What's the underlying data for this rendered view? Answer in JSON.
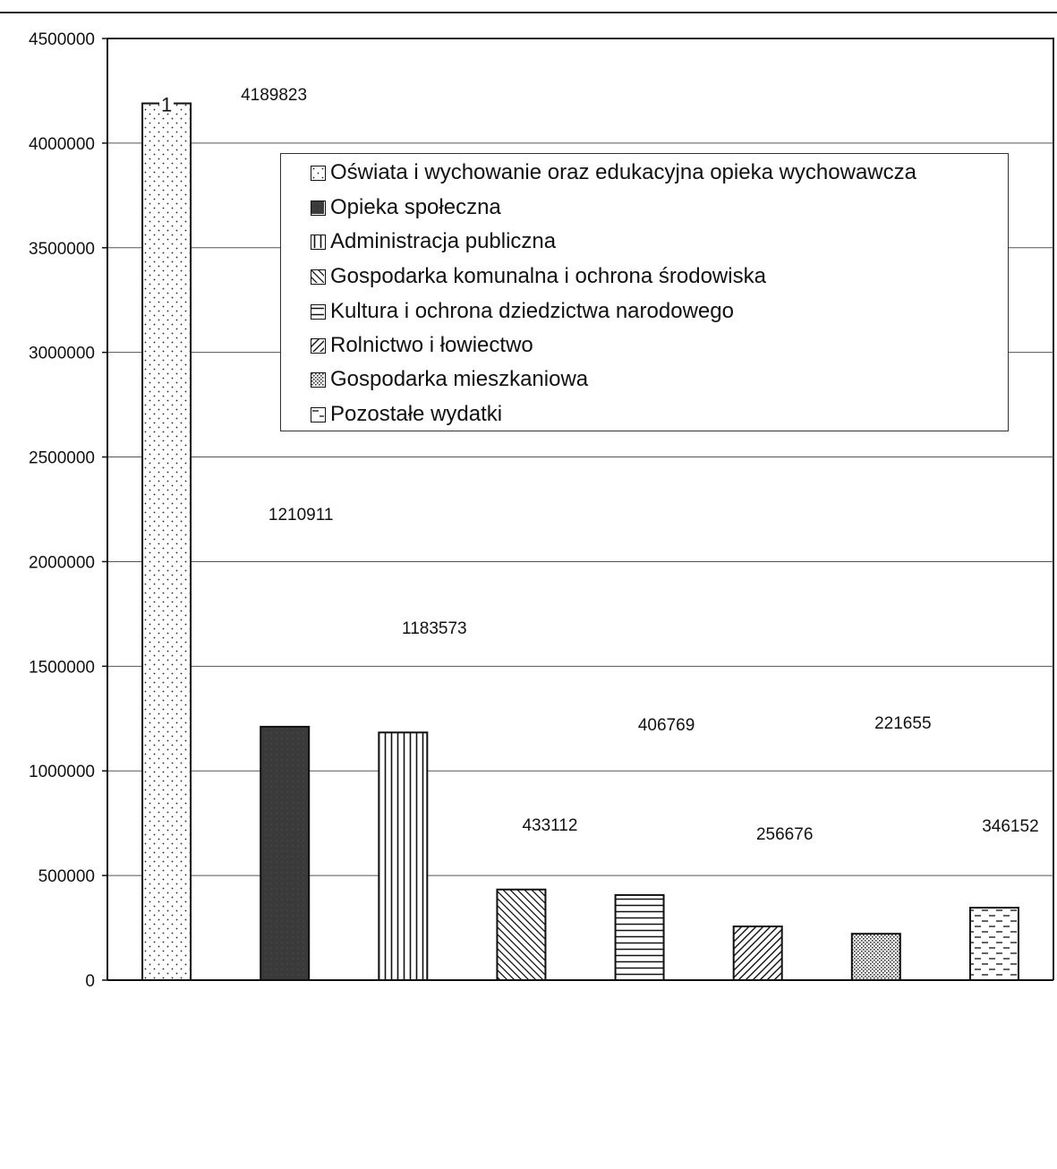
{
  "chart_data": {
    "type": "bar",
    "categories": [
      "Oświata i wychowanie oraz edukacyjna opieka wychowawcza",
      "Opieka społeczna",
      "Administracja publiczna",
      "Gospodarka komunalna i ochrona środowiska",
      "Kultura i ochrona dziedzictwa narodowego",
      "Rolnictwo i łowiectwo",
      "Gospodarka mieszkaniowa",
      "Pozostałe wydatki"
    ],
    "values": [
      4189823,
      1210911,
      1183573,
      433112,
      406769,
      256676,
      221655,
      346152
    ],
    "data_labels": [
      "4189823",
      "1210911",
      "1183573",
      "433112",
      "406769",
      "256676",
      "221655",
      "346152"
    ],
    "patterns": [
      "dots",
      "solid-dark",
      "vertical-lines",
      "diagonal-back",
      "horizontal-lines",
      "diagonal-forward",
      "dense-dots",
      "dashes"
    ],
    "bar_top_label": "1",
    "yticks": [
      "0",
      "500000",
      "1000000",
      "1500000",
      "2000000",
      "2500000",
      "3000000",
      "3500000",
      "4000000",
      "4500000"
    ],
    "ylim": [
      0,
      4500000
    ],
    "grid": true,
    "legend_position": "top-right",
    "title": "",
    "xlabel": "",
    "ylabel": ""
  },
  "legend": {
    "items": [
      "Oświata i wychowanie oraz edukacyjna opieka wychowawcza",
      "Opieka społeczna",
      "Administracja publiczna",
      "Gospodarka komunalna i ochrona środowiska",
      "Kultura i ochrona dziedzictwa narodowego",
      "Rolnictwo i łowiectwo",
      "Gospodarka mieszkaniowa",
      "Pozostałe wydatki"
    ]
  },
  "colors": {
    "ink": "#111111",
    "grid": "#555555",
    "dark_fill": "#3a3a3a"
  }
}
